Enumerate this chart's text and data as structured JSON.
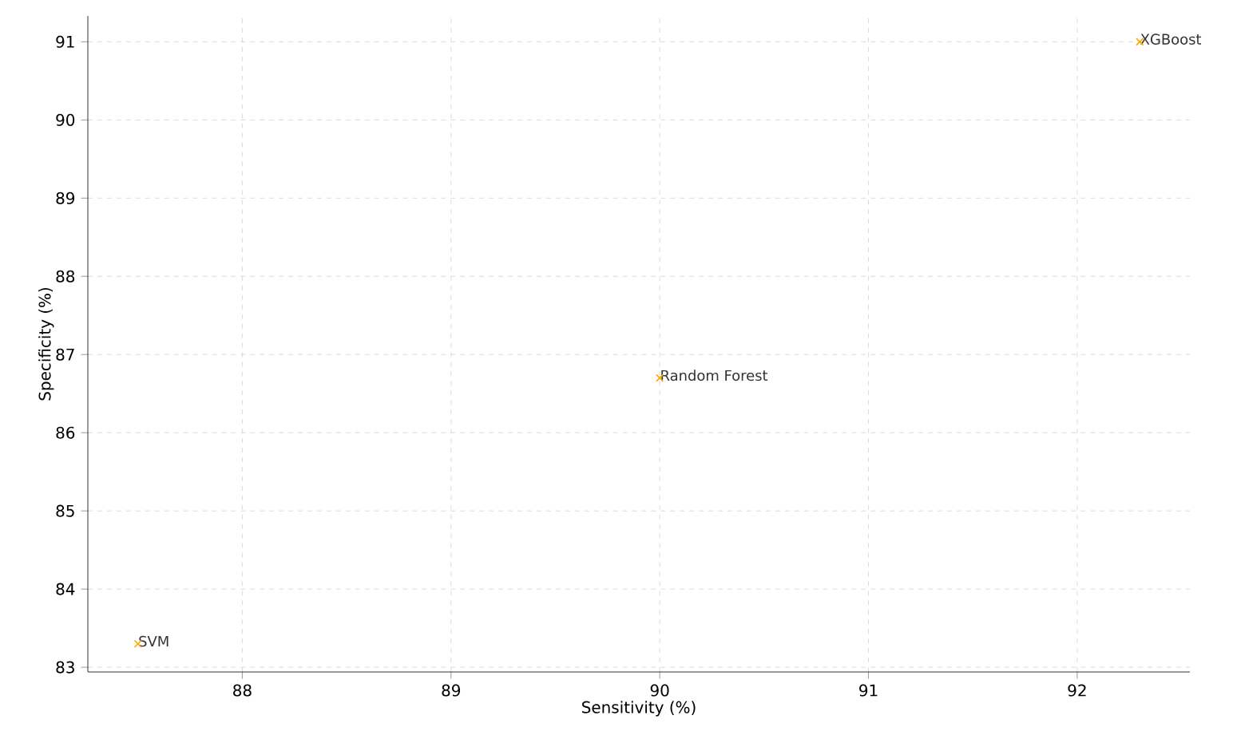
{
  "chart_data": {
    "type": "scatter",
    "xlabel": "Sensitivity (%)",
    "ylabel": "Specificity (%)",
    "x": [
      87.5,
      90.0,
      92.3
    ],
    "series": [
      {
        "color": "#ffa500",
        "values": [
          83.3,
          86.7,
          91.0
        ]
      }
    ],
    "marker": "cross",
    "grid": true,
    "xlim": [
      87.26,
      92.54
    ],
    "ylim": [
      82.94,
      91.33
    ],
    "xticks": [
      88,
      89,
      90,
      91,
      92
    ],
    "yticks": [
      83,
      84,
      85,
      86,
      87,
      88,
      89,
      90,
      91
    ],
    "annotations": [
      {
        "text": "SVM",
        "x": 87.5,
        "y": 83.3
      },
      {
        "text": "Random Forest",
        "x": 90.0,
        "y": 86.7
      },
      {
        "text": "XGBoost",
        "x": 92.3,
        "y": 91.0
      }
    ]
  }
}
